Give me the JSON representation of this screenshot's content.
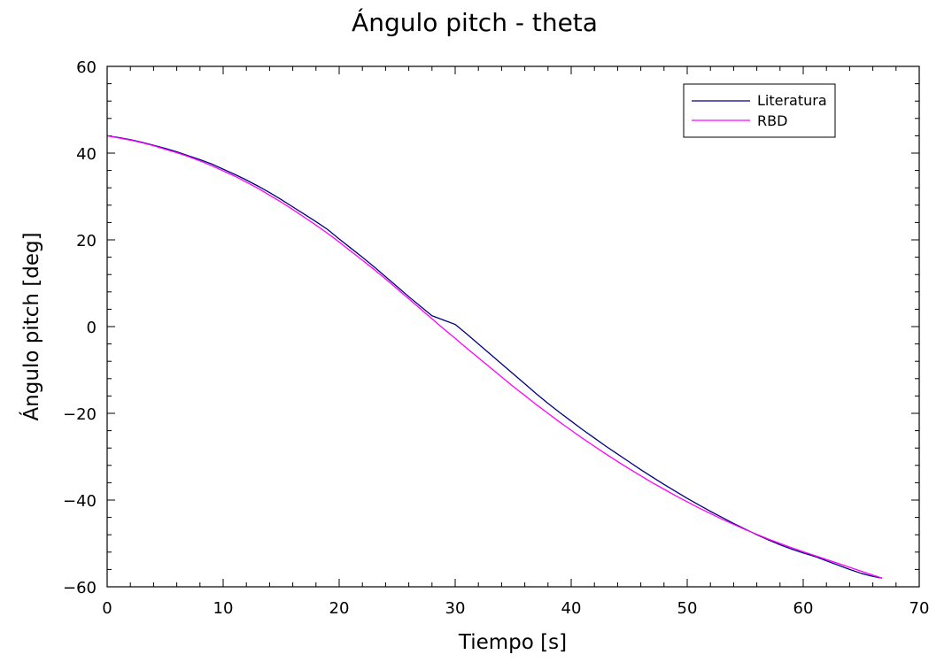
{
  "chart_data": {
    "type": "line",
    "title": "Ángulo pitch - theta",
    "xlabel": "Tiempo [s]",
    "ylabel": "Ángulo pitch [deg]",
    "xlim": [
      0,
      70
    ],
    "ylim": [
      -60,
      60
    ],
    "xticks": [
      0,
      10,
      20,
      30,
      40,
      50,
      60,
      70
    ],
    "xtick_labels": [
      "0",
      "10",
      "20",
      "30",
      "40",
      "50",
      "60",
      "70"
    ],
    "yticks": [
      -60,
      -40,
      -20,
      0,
      20,
      40,
      60
    ],
    "ytick_labels": [
      "−60",
      "−40",
      "−20",
      "0",
      "20",
      "40",
      "60"
    ],
    "grid": false,
    "legend": {
      "placement": "top-right"
    },
    "series": [
      {
        "name": "Literatura",
        "color": "#00007f",
        "x": [
          0,
          1,
          2,
          3,
          4,
          5,
          6,
          7,
          8,
          9,
          10,
          11,
          12,
          13,
          14,
          15,
          16,
          17,
          18,
          19,
          20,
          21,
          22,
          23,
          24,
          25,
          26,
          27,
          28,
          29,
          30,
          31,
          32,
          33,
          34,
          35,
          36,
          37,
          38,
          39,
          40,
          41,
          42,
          43,
          44,
          45,
          46,
          47,
          48,
          49,
          50,
          51,
          52,
          53,
          54,
          55,
          56,
          57,
          58,
          59,
          60,
          61,
          62,
          63,
          64,
          65,
          66,
          66.8
        ],
        "y": [
          44.0,
          43.6,
          43.1,
          42.5,
          41.8,
          41.1,
          40.3,
          39.4,
          38.5,
          37.5,
          36.3,
          35.1,
          33.8,
          32.4,
          30.9,
          29.3,
          27.6,
          25.9,
          24.2,
          22.4,
          20.2,
          18.1,
          16.0,
          13.8,
          11.5,
          9.2,
          6.9,
          4.7,
          2.5,
          1.5,
          0.5,
          -1.7,
          -4.0,
          -6.3,
          -8.6,
          -10.9,
          -13.2,
          -15.5,
          -17.7,
          -19.8,
          -21.8,
          -23.8,
          -25.7,
          -27.6,
          -29.4,
          -31.2,
          -33.0,
          -34.7,
          -36.4,
          -38.0,
          -39.6,
          -41.1,
          -42.6,
          -44.0,
          -45.4,
          -46.7,
          -48.0,
          -49.2,
          -50.3,
          -51.3,
          -52.2,
          -53.0,
          -54.0,
          -55.0,
          -56.0,
          -56.9,
          -57.6,
          -58.0
        ]
      },
      {
        "name": "RBD",
        "color": "#ff00ff",
        "x": [
          0,
          1,
          2,
          3,
          4,
          5,
          6,
          7,
          8,
          9,
          10,
          11,
          12,
          13,
          14,
          15,
          16,
          17,
          18,
          19,
          20,
          21,
          22,
          23,
          24,
          25,
          26,
          27,
          28,
          29,
          30,
          31,
          32,
          33,
          34,
          35,
          36,
          37,
          38,
          39,
          40,
          41,
          42,
          43,
          44,
          45,
          46,
          47,
          48,
          49,
          50,
          51,
          52,
          53,
          54,
          55,
          56,
          57,
          58,
          59,
          60,
          61,
          62,
          63,
          64,
          65,
          66,
          66.8
        ],
        "y": [
          44.0,
          43.5,
          43.0,
          42.4,
          41.7,
          40.9,
          40.1,
          39.2,
          38.2,
          37.1,
          35.9,
          34.7,
          33.3,
          31.9,
          30.3,
          28.7,
          27.0,
          25.2,
          23.4,
          21.5,
          19.5,
          17.4,
          15.3,
          13.2,
          11.0,
          8.7,
          6.4,
          4.1,
          1.8,
          -0.5,
          -2.7,
          -5.0,
          -7.2,
          -9.4,
          -11.6,
          -13.8,
          -15.9,
          -18.0,
          -20.0,
          -22.0,
          -23.9,
          -25.8,
          -27.6,
          -29.4,
          -31.1,
          -32.8,
          -34.4,
          -36.0,
          -37.5,
          -39.0,
          -40.4,
          -41.8,
          -43.1,
          -44.4,
          -45.6,
          -46.8,
          -47.9,
          -49.0,
          -50.0,
          -51.0,
          -51.9,
          -52.8,
          -53.7,
          -54.6,
          -55.5,
          -56.4,
          -57.3,
          -58.0
        ]
      }
    ]
  }
}
